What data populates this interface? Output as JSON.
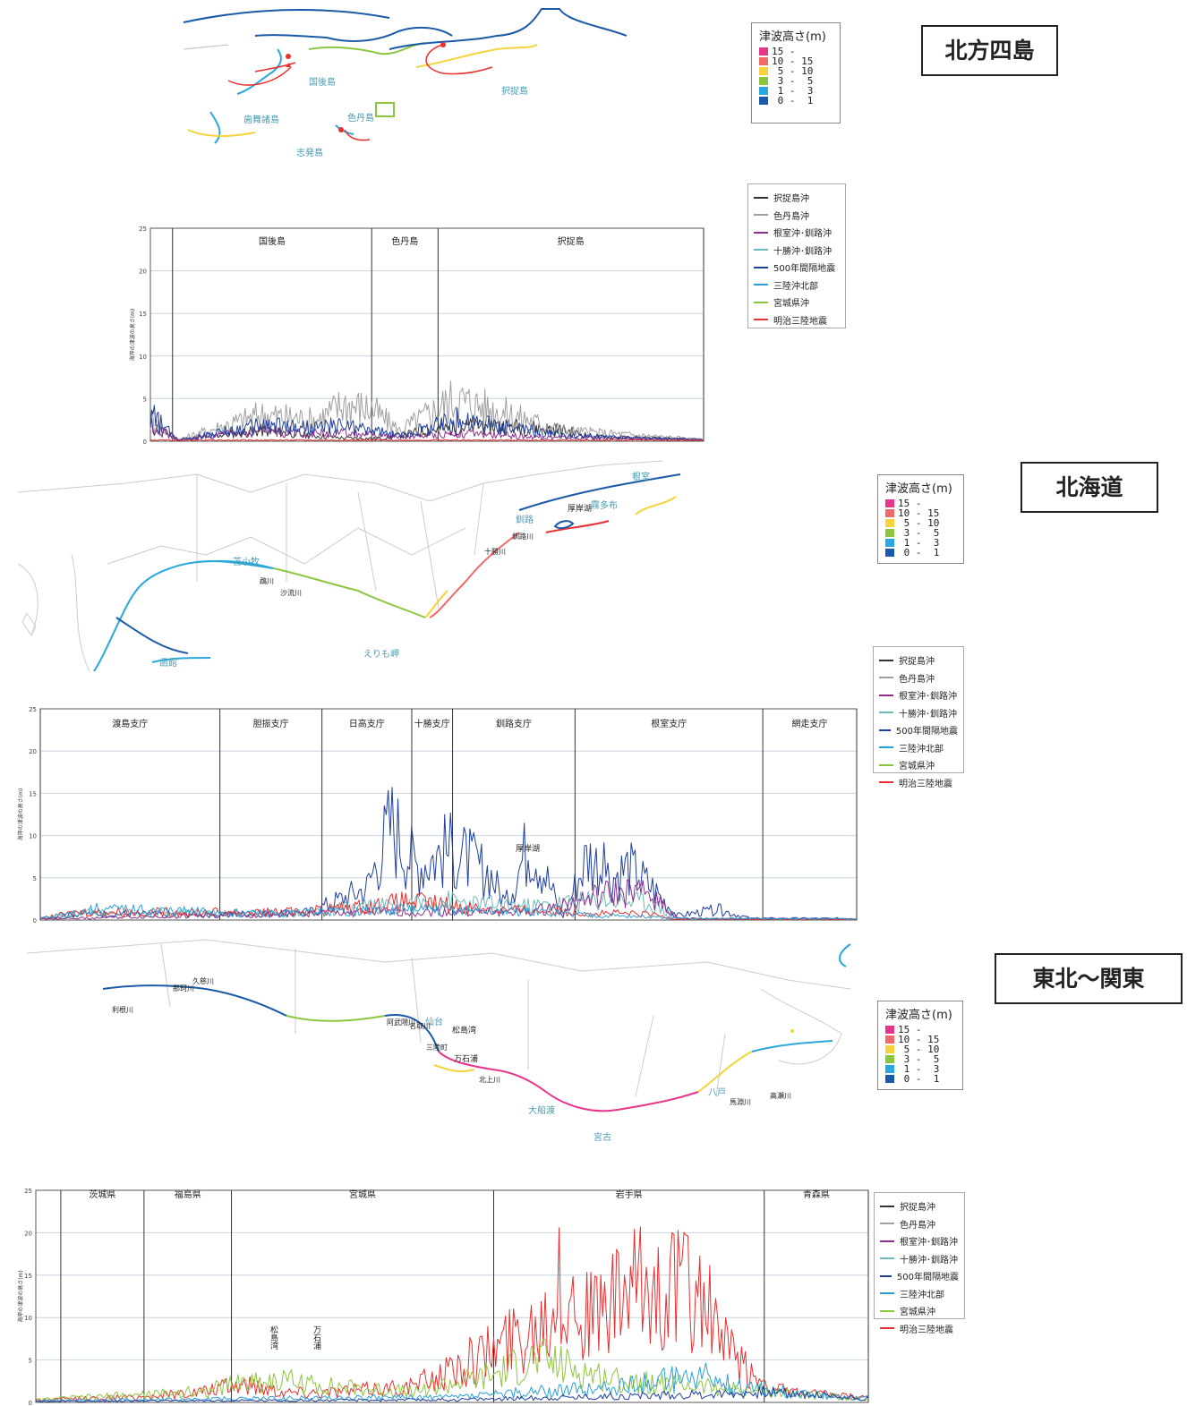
{
  "scale": {
    "title": "津波高さ(m)",
    "rows": [
      {
        "label": "15 -",
        "color": "#e8358c"
      },
      {
        "label": "10 - 15",
        "color": "#f06a6a"
      },
      {
        "label": " 5 - 10",
        "color": "#f5d33a"
      },
      {
        "label": " 3 -  5",
        "color": "#8cc63f"
      },
      {
        "label": " 1 -  3",
        "color": "#29a8de"
      },
      {
        "label": " 0 -  1",
        "color": "#1a5aa8"
      }
    ]
  },
  "scenarios": [
    {
      "name": "択捉島沖",
      "color": "#333333"
    },
    {
      "name": "色丹島沖",
      "color": "#a0a0a0"
    },
    {
      "name": "根室沖･釧路沖",
      "color": "#8e2f8e"
    },
    {
      "name": "十勝沖･釧路沖",
      "color": "#6fb8b8"
    },
    {
      "name": "500年間隔地震",
      "color": "#1f3f9f"
    },
    {
      "name": "三陸沖北部",
      "color": "#2aa0d8"
    },
    {
      "name": "宮城県沖",
      "color": "#8cc63f"
    },
    {
      "name": "明治三陸地震",
      "color": "#e83030"
    }
  ],
  "panels": [
    {
      "region": "北方四島",
      "map_labels": [
        "国後島",
        "択捉島",
        "歯舞諸島",
        "色丹島",
        "志発島"
      ],
      "sections": [
        "国後島",
        "色丹島",
        "択捉島"
      ]
    },
    {
      "region": "北海道",
      "map_labels": [
        "根室",
        "霧多布",
        "厚岸湖",
        "釧路",
        "苫小牧",
        "えりも岬",
        "函館"
      ],
      "river_labels": [
        "鵡川",
        "沙流川",
        "十勝川",
        "釧路川"
      ],
      "sections": [
        "渡島支庁",
        "胆振支庁",
        "日高支庁",
        "十勝\n支庁",
        "釧路支庁",
        "根室支庁",
        "網走支庁"
      ],
      "annotation": "厚岸湖"
    },
    {
      "region": "東北～関東",
      "map_labels": [
        "仙台",
        "松島湾",
        "三陸町",
        "万石浦",
        "大船渡",
        "宮古",
        "八戸"
      ],
      "river_labels": [
        "利根川",
        "那珂川",
        "久慈川",
        "阿武隈川",
        "名取川",
        "北上川",
        "馬淵川",
        "高瀬川"
      ],
      "sections": [
        "茨城県",
        "福島県",
        "宮城県",
        "岩手県",
        "青森県"
      ],
      "annotations": [
        "松島湾",
        "万石浦"
      ],
      "ylabel": "海岸の津波の高さ(m)"
    }
  ],
  "chart_data": [
    {
      "type": "line",
      "title": "北方四島",
      "ylabel": "海岸の津波の高さ(m)",
      "ylim": [
        0,
        25
      ],
      "yticks": [
        0,
        5,
        10,
        15,
        20,
        25
      ],
      "sections": [
        "国後島",
        "色丹島",
        "択捉島"
      ],
      "x_description": "coastal position (unlabeled)",
      "series": [
        {
          "name": "択捉島沖",
          "envelope": [
            [
              0,
              3
            ],
            [
              0.05,
              0.3
            ],
            [
              0.2,
              2
            ],
            [
              0.3,
              1
            ],
            [
              0.35,
              0.6
            ],
            [
              0.42,
              0.5
            ],
            [
              0.5,
              2
            ],
            [
              0.6,
              3
            ],
            [
              0.7,
              2.5
            ],
            [
              0.75,
              2
            ],
            [
              0.8,
              0.8
            ],
            [
              1,
              0.3
            ]
          ]
        },
        {
          "name": "色丹島沖",
          "envelope": [
            [
              0,
              4
            ],
            [
              0.05,
              0.3
            ],
            [
              0.2,
              5
            ],
            [
              0.3,
              4
            ],
            [
              0.35,
              7
            ],
            [
              0.4,
              6
            ],
            [
              0.45,
              2
            ],
            [
              0.55,
              8
            ],
            [
              0.65,
              5
            ],
            [
              0.75,
              2
            ],
            [
              1,
              0.3
            ]
          ]
        },
        {
          "name": "根室沖･釧路沖",
          "envelope": [
            [
              0,
              3
            ],
            [
              0.05,
              0.2
            ],
            [
              0.2,
              2
            ],
            [
              0.3,
              1.5
            ],
            [
              0.35,
              1.5
            ],
            [
              0.45,
              0.8
            ],
            [
              0.55,
              1.5
            ],
            [
              0.7,
              0.8
            ],
            [
              1,
              0.2
            ]
          ]
        },
        {
          "name": "500年間隔地震",
          "envelope": [
            [
              0,
              5
            ],
            [
              0.05,
              0.2
            ],
            [
              0.2,
              3
            ],
            [
              0.3,
              2.5
            ],
            [
              0.35,
              3
            ],
            [
              0.45,
              1
            ],
            [
              0.55,
              4
            ],
            [
              0.65,
              2.5
            ],
            [
              0.75,
              1
            ],
            [
              1,
              0.3
            ]
          ]
        },
        {
          "name": "明治三陸地震",
          "envelope": [
            [
              0,
              0.2
            ],
            [
              1,
              0.2
            ]
          ]
        }
      ]
    },
    {
      "type": "line",
      "title": "北海道",
      "ylabel": "海岸の津波の高さ(m)",
      "ylim": [
        0,
        25
      ],
      "yticks": [
        0,
        5,
        10,
        15,
        20,
        25
      ],
      "sections": [
        "渡島支庁",
        "胆振支庁",
        "日高支庁",
        "十勝支庁",
        "釧路支庁",
        "根室支庁",
        "網走支庁"
      ],
      "series": [
        {
          "name": "500年間隔地震",
          "envelope": [
            [
              0,
              0.3
            ],
            [
              0.05,
              1.2
            ],
            [
              0.2,
              1
            ],
            [
              0.33,
              1.5
            ],
            [
              0.4,
              6
            ],
            [
              0.43,
              18
            ],
            [
              0.46,
              10
            ],
            [
              0.5,
              13
            ],
            [
              0.55,
              9
            ],
            [
              0.57,
              3
            ],
            [
              0.6,
              15
            ],
            [
              0.62,
              8
            ],
            [
              0.64,
              0.5
            ],
            [
              0.67,
              12
            ],
            [
              0.7,
              8
            ],
            [
              0.72,
              10
            ],
            [
              0.75,
              6
            ],
            [
              0.78,
              0.8
            ],
            [
              0.83,
              2
            ],
            [
              0.87,
              0.3
            ],
            [
              1,
              0.3
            ]
          ]
        },
        {
          "name": "十勝沖･釧路沖",
          "envelope": [
            [
              0,
              0.3
            ],
            [
              0.05,
              1.5
            ],
            [
              0.3,
              1.2
            ],
            [
              0.4,
              2.5
            ],
            [
              0.5,
              3.5
            ],
            [
              0.6,
              2.5
            ],
            [
              0.7,
              4
            ],
            [
              0.75,
              3
            ],
            [
              0.78,
              0.3
            ],
            [
              1,
              0.2
            ]
          ]
        },
        {
          "name": "根室沖･釧路沖",
          "envelope": [
            [
              0,
              0.2
            ],
            [
              0.4,
              1.5
            ],
            [
              0.6,
              1.5
            ],
            [
              0.65,
              3
            ],
            [
              0.7,
              5
            ],
            [
              0.75,
              5
            ],
            [
              0.78,
              0.3
            ],
            [
              1,
              0.2
            ]
          ]
        },
        {
          "name": "明治三陸地震",
          "envelope": [
            [
              0,
              0.3
            ],
            [
              0.05,
              1.5
            ],
            [
              0.3,
              1.5
            ],
            [
              0.4,
              2.5
            ],
            [
              0.45,
              3.5
            ],
            [
              0.55,
              2
            ],
            [
              0.65,
              1.5
            ],
            [
              0.75,
              1
            ],
            [
              0.78,
              0.2
            ],
            [
              1,
              0.1
            ]
          ]
        },
        {
          "name": "三陸沖北部",
          "envelope": [
            [
              0,
              0.3
            ],
            [
              0.07,
              2
            ],
            [
              0.3,
              1.2
            ],
            [
              0.45,
              2
            ],
            [
              0.6,
              1.5
            ],
            [
              0.78,
              0.3
            ],
            [
              1,
              0.2
            ]
          ]
        }
      ]
    },
    {
      "type": "line",
      "title": "東北～関東",
      "ylabel": "海岸の津波の高さ(m)",
      "ylim": [
        0,
        25
      ],
      "yticks": [
        0,
        5,
        10,
        15,
        20,
        25
      ],
      "sections": [
        "茨城県",
        "福島県",
        "宮城県",
        "岩手県",
        "青森県"
      ],
      "series": [
        {
          "name": "明治三陸地震",
          "envelope": [
            [
              0,
              0.5
            ],
            [
              0.12,
              1
            ],
            [
              0.2,
              2
            ],
            [
              0.25,
              3.5
            ],
            [
              0.3,
              2
            ],
            [
              0.35,
              2
            ],
            [
              0.45,
              3
            ],
            [
              0.5,
              6
            ],
            [
              0.55,
              10
            ],
            [
              0.6,
              15
            ],
            [
              0.63,
              21
            ],
            [
              0.67,
              16
            ],
            [
              0.72,
              21
            ],
            [
              0.77,
              22
            ],
            [
              0.8,
              20
            ],
            [
              0.83,
              10
            ],
            [
              0.86,
              5
            ],
            [
              0.9,
              2
            ],
            [
              1,
              0.8
            ]
          ]
        },
        {
          "name": "宮城県沖",
          "envelope": [
            [
              0,
              0.5
            ],
            [
              0.2,
              2
            ],
            [
              0.25,
              4
            ],
            [
              0.3,
              4
            ],
            [
              0.35,
              3
            ],
            [
              0.45,
              2
            ],
            [
              0.55,
              5
            ],
            [
              0.6,
              8
            ],
            [
              0.65,
              6
            ],
            [
              0.7,
              4
            ],
            [
              0.8,
              3
            ],
            [
              1,
              0.5
            ]
          ]
        },
        {
          "name": "三陸沖北部",
          "envelope": [
            [
              0,
              0.3
            ],
            [
              0.3,
              0.8
            ],
            [
              0.5,
              1
            ],
            [
              0.6,
              2
            ],
            [
              0.7,
              3
            ],
            [
              0.75,
              4
            ],
            [
              0.8,
              5
            ],
            [
              0.84,
              3
            ],
            [
              0.9,
              2
            ],
            [
              1,
              0.8
            ]
          ]
        },
        {
          "name": "500年間隔地震",
          "envelope": [
            [
              0,
              0.2
            ],
            [
              0.5,
              0.5
            ],
            [
              0.8,
              1.5
            ],
            [
              0.88,
              2
            ],
            [
              1,
              0.8
            ]
          ]
        }
      ]
    }
  ]
}
